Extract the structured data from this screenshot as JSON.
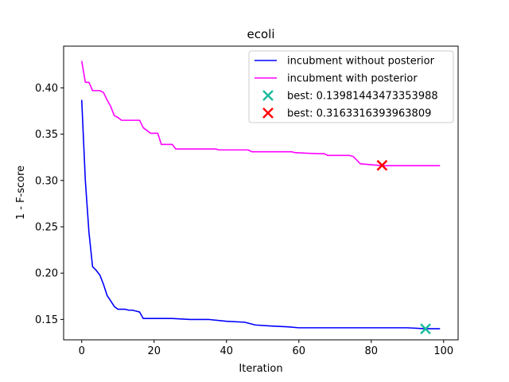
{
  "chart_data": {
    "type": "line",
    "title": "ecoli",
    "xlabel": "Iteration",
    "ylabel": "1 - F-score",
    "xlim": [
      -5,
      104
    ],
    "ylim": [
      0.128,
      0.445
    ],
    "xticks": [
      0,
      20,
      40,
      60,
      80,
      100
    ],
    "yticks": [
      0.15,
      0.2,
      0.25,
      0.3,
      0.35,
      0.4
    ],
    "xtick_labels": [
      "0",
      "20",
      "40",
      "60",
      "80",
      "100"
    ],
    "ytick_labels": [
      "0.15",
      "0.20",
      "0.25",
      "0.30",
      "0.35",
      "0.40"
    ],
    "grid": false,
    "legend_position": "top-right",
    "series": [
      {
        "name": "incubment without posterior",
        "color": "#0000ff",
        "kind": "line",
        "x": [
          0,
          1,
          2,
          3,
          4,
          5,
          6,
          7,
          8,
          9,
          10,
          11,
          12,
          13,
          14,
          15,
          16,
          17,
          18,
          20,
          25,
          30,
          35,
          40,
          45,
          48,
          52,
          57,
          60,
          70,
          80,
          90,
          95,
          99
        ],
        "y": [
          0.387,
          0.3,
          0.244,
          0.207,
          0.203,
          0.198,
          0.188,
          0.176,
          0.17,
          0.164,
          0.161,
          0.161,
          0.161,
          0.16,
          0.16,
          0.159,
          0.158,
          0.151,
          0.151,
          0.151,
          0.151,
          0.15,
          0.15,
          0.148,
          0.147,
          0.144,
          0.143,
          0.142,
          0.141,
          0.141,
          0.141,
          0.141,
          0.14,
          0.14
        ]
      },
      {
        "name": "incubment with posterior",
        "color": "#ff00ff",
        "kind": "line",
        "x": [
          0,
          1,
          2,
          3,
          4,
          5,
          6,
          7,
          8,
          9,
          10,
          11,
          12,
          13,
          14,
          15,
          16,
          17,
          18,
          19,
          20,
          21,
          22,
          25,
          26,
          30,
          35,
          37,
          38,
          46,
          47,
          58,
          59,
          65,
          67,
          68,
          69,
          73,
          74,
          75,
          76,
          77,
          83,
          99
        ],
        "y": [
          0.429,
          0.406,
          0.406,
          0.397,
          0.397,
          0.397,
          0.395,
          0.387,
          0.38,
          0.37,
          0.368,
          0.365,
          0.365,
          0.365,
          0.365,
          0.365,
          0.365,
          0.357,
          0.354,
          0.351,
          0.351,
          0.351,
          0.339,
          0.339,
          0.334,
          0.334,
          0.334,
          0.334,
          0.333,
          0.333,
          0.331,
          0.331,
          0.33,
          0.329,
          0.329,
          0.327,
          0.327,
          0.327,
          0.327,
          0.326,
          0.322,
          0.318,
          0.316,
          0.316
        ]
      },
      {
        "name": "best: 0.13981443473353988",
        "color": "#1abc9c",
        "kind": "marker",
        "x": [
          95
        ],
        "y": [
          0.13981443473353988
        ]
      },
      {
        "name": "best: 0.3163316393963809",
        "color": "#ff0000",
        "kind": "marker",
        "x": [
          83
        ],
        "y": [
          0.3163316393963809
        ]
      }
    ]
  }
}
